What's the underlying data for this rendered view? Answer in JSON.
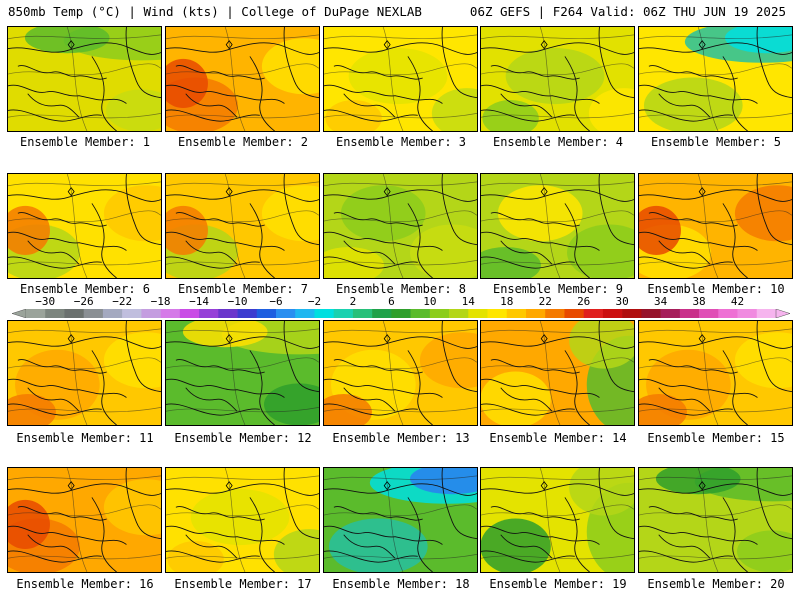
{
  "header": {
    "left": "850mb Temp (°C) | Wind (kts) | College of DuPage NEXLAB",
    "right": "06Z GEFS | F264 Valid: 06Z THU JUN 19 2025"
  },
  "panel_label_prefix": "Ensemble Member:",
  "members": [
    {
      "id": "1",
      "label": "Ensemble Member: 1",
      "palette": [
        "#e0dc00",
        "#c7dc10",
        "#8ccd1c",
        "#5bbb2c"
      ],
      "gradient": "top-green"
    },
    {
      "id": "2",
      "label": "Ensemble Member: 2",
      "palette": [
        "#ffb400",
        "#ffe100",
        "#f47a00",
        "#e84a00"
      ],
      "gradient": "left-orange"
    },
    {
      "id": "3",
      "label": "Ensemble Member: 3",
      "palette": [
        "#ffe600",
        "#e4e300",
        "#c4dc12",
        "#ffc800"
      ],
      "gradient": "mixed-yellow"
    },
    {
      "id": "4",
      "label": "Ensemble Member: 4",
      "palette": [
        "#e2e100",
        "#b4d618",
        "#ffe600",
        "#8ccd1c"
      ],
      "gradient": "mixed-yellow"
    },
    {
      "id": "5",
      "label": "Ensemble Member: 5",
      "palette": [
        "#ffe600",
        "#b4d618",
        "#27c0a0",
        "#00dfe0"
      ],
      "gradient": "top-cyan"
    },
    {
      "id": "6",
      "label": "Ensemble Member: 6",
      "palette": [
        "#ffe100",
        "#ffc800",
        "#b4d618",
        "#f47a00"
      ],
      "gradient": "left-orange"
    },
    {
      "id": "7",
      "label": "Ensemble Member: 7",
      "palette": [
        "#ffc800",
        "#ffe100",
        "#b4d618",
        "#f47a00"
      ],
      "gradient": "left-orange"
    },
    {
      "id": "8",
      "label": "Ensemble Member: 8",
      "palette": [
        "#b4d618",
        "#8ccd1c",
        "#c9dd10",
        "#e4e300"
      ],
      "gradient": "mixed-green"
    },
    {
      "id": "9",
      "label": "Ensemble Member: 9",
      "palette": [
        "#b4d618",
        "#ffe600",
        "#8ccd1c",
        "#5bbb2c"
      ],
      "gradient": "mixed-green"
    },
    {
      "id": "10",
      "label": "Ensemble Member: 10",
      "palette": [
        "#ffb400",
        "#f47a00",
        "#ffe100",
        "#e84a00"
      ],
      "gradient": "left-orange"
    },
    {
      "id": "11",
      "label": "Ensemble Member: 11",
      "palette": [
        "#ffc800",
        "#ffa800",
        "#ffe100",
        "#f47a00"
      ],
      "gradient": "mixed-orange"
    },
    {
      "id": "12",
      "label": "Ensemble Member: 12",
      "palette": [
        "#5bbb2c",
        "#2f9f2c",
        "#b4d618",
        "#ffe100"
      ],
      "gradient": "top-green"
    },
    {
      "id": "13",
      "label": "Ensemble Member: 13",
      "palette": [
        "#ffc800",
        "#ffe100",
        "#ffa800",
        "#f47a00"
      ],
      "gradient": "mixed-orange"
    },
    {
      "id": "14",
      "label": "Ensemble Member: 14",
      "palette": [
        "#ffa800",
        "#b4d618",
        "#5bbb2c",
        "#ffe100"
      ],
      "gradient": "right-green"
    },
    {
      "id": "15",
      "label": "Ensemble Member: 15",
      "palette": [
        "#ffc800",
        "#ffa800",
        "#ffe100",
        "#f47a00"
      ],
      "gradient": "mixed-orange"
    },
    {
      "id": "16",
      "label": "Ensemble Member: 16",
      "palette": [
        "#ffa800",
        "#ffc800",
        "#f47a00",
        "#e84a00"
      ],
      "gradient": "left-orange"
    },
    {
      "id": "17",
      "label": "Ensemble Member: 17",
      "palette": [
        "#ffe100",
        "#e4e300",
        "#b4d618",
        "#ffc800"
      ],
      "gradient": "mixed-yellow"
    },
    {
      "id": "18",
      "label": "Ensemble Member: 18",
      "palette": [
        "#5bbb2c",
        "#27c0a0",
        "#00dfe0",
        "#2a7ff0"
      ],
      "gradient": "top-cyan"
    },
    {
      "id": "19",
      "label": "Ensemble Member: 19",
      "palette": [
        "#e4e300",
        "#b4d618",
        "#8ccd1c",
        "#2f9f2c"
      ],
      "gradient": "right-green"
    },
    {
      "id": "20",
      "label": "Ensemble Member: 20",
      "palette": [
        "#b4d618",
        "#8ccd1c",
        "#5bbb2c",
        "#2f9f2c"
      ],
      "gradient": "top-green"
    }
  ],
  "colorbar": {
    "tick_labels": [
      "-30",
      "-26",
      "-22",
      "-18",
      "-14",
      "-10",
      "-6",
      "-2",
      "2",
      "6",
      "10",
      "14",
      "18",
      "22",
      "26",
      "30",
      "34",
      "38",
      "42"
    ],
    "colors": [
      "#9aa39a",
      "#7c857e",
      "#6b716f",
      "#8a8f94",
      "#a4a9c0",
      "#c0bede",
      "#c49de0",
      "#d57ae8",
      "#c94ce6",
      "#9640d8",
      "#6a36cc",
      "#3c3cd0",
      "#1e5fe0",
      "#2a8ff0",
      "#1fb7f0",
      "#00dfe0",
      "#1ad1b0",
      "#27c07a",
      "#20a24a",
      "#2f9f2c",
      "#5bbb2c",
      "#8ccd1c",
      "#b4d618",
      "#e4e300",
      "#ffe600",
      "#ffc800",
      "#ffa800",
      "#f47a00",
      "#e84a00",
      "#e0201e",
      "#cc1010",
      "#b00e0e",
      "#96132a",
      "#a61e5a",
      "#c9308a",
      "#e04fb6",
      "#ee70d4",
      "#f08ae0",
      "#f6b4ee"
    ]
  }
}
